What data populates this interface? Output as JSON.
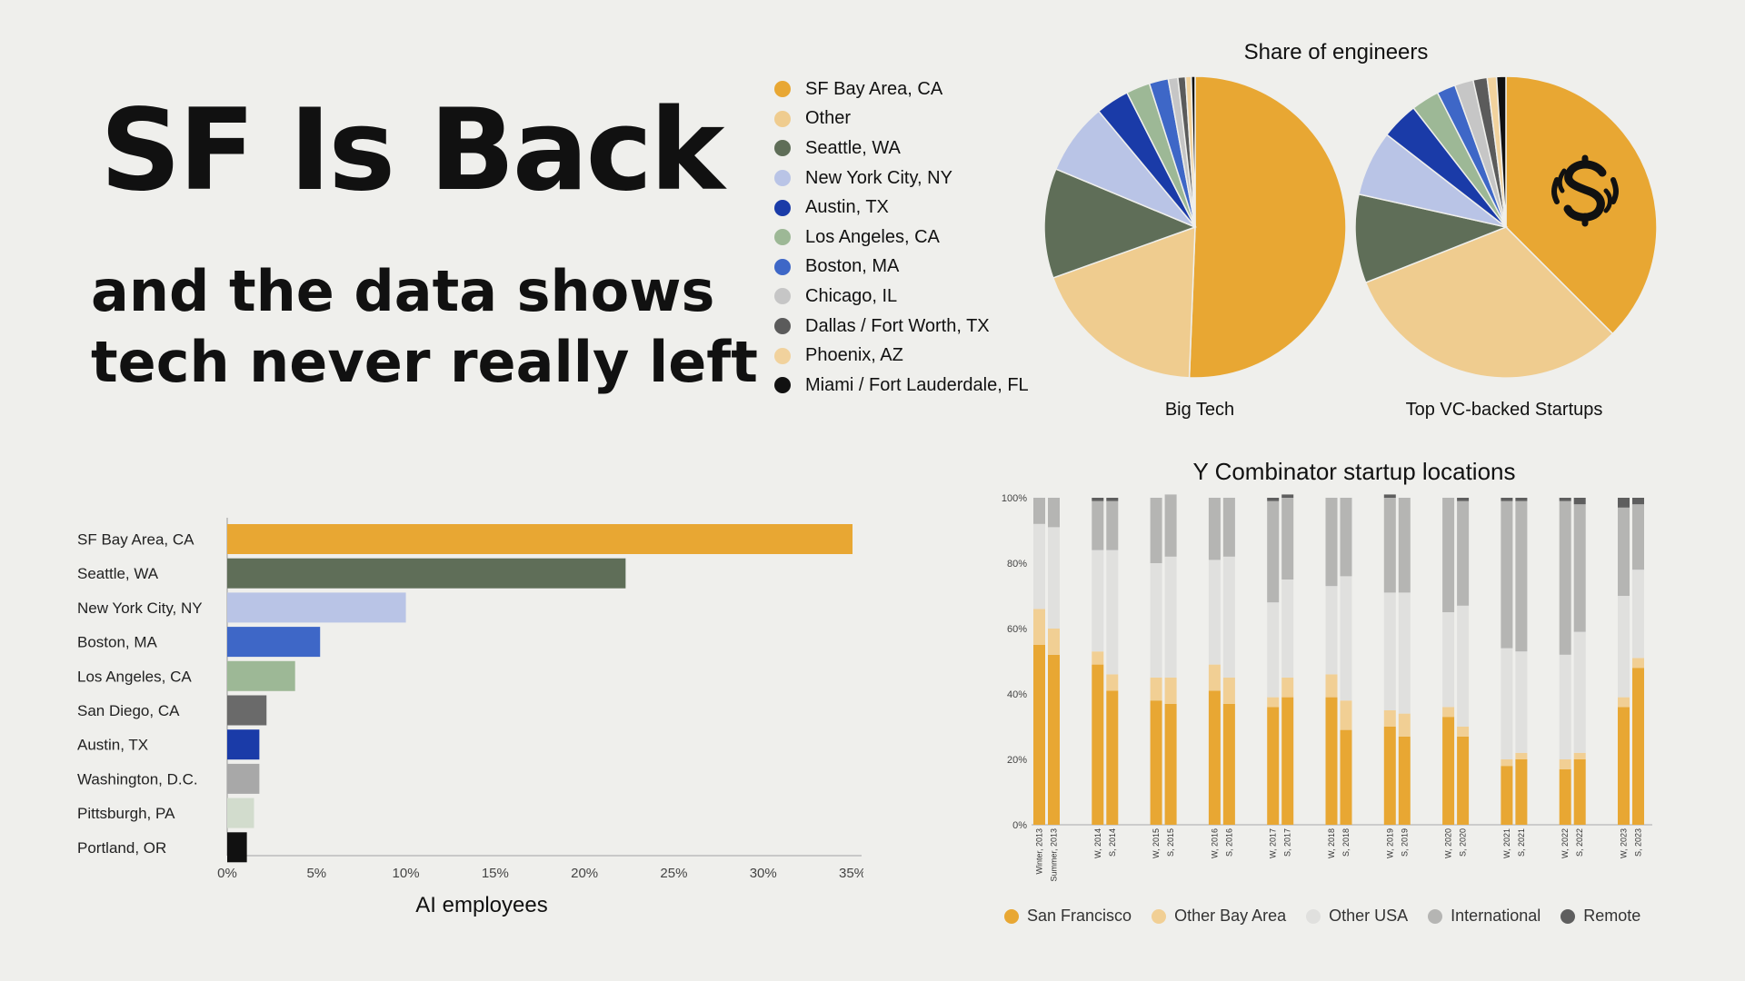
{
  "headline": "SF Is Back",
  "subline": [
    "and the data shows",
    "tech never really left"
  ],
  "colors": {
    "sf": "#e8a733",
    "other": "#efcc8f",
    "seattle": "#5f6e58",
    "nyc": "#b9c4e6",
    "austin": "#1a3ba8",
    "la": "#9db896",
    "boston": "#3e67c7",
    "chicago": "#c6c6c6",
    "dallas": "#5b5b5b",
    "phoenix": "#f1d29d",
    "miami": "#111111"
  },
  "pie_legend": [
    {
      "label": "SF Bay Area, CA",
      "color": "#e8a733"
    },
    {
      "label": "Other",
      "color": "#efcc8f"
    },
    {
      "label": "Seattle, WA",
      "color": "#5f6e58"
    },
    {
      "label": "New York City, NY",
      "color": "#b9c4e6"
    },
    {
      "label": "Austin, TX",
      "color": "#1a3ba8"
    },
    {
      "label": "Los Angeles, CA",
      "color": "#9db896"
    },
    {
      "label": "Boston, MA",
      "color": "#3e67c7"
    },
    {
      "label": "Chicago, IL",
      "color": "#c6c6c6"
    },
    {
      "label": "Dallas / Fort Worth, TX",
      "color": "#5b5b5b"
    },
    {
      "label": "Phoenix, AZ",
      "color": "#f1d29d"
    },
    {
      "label": "Miami / Fort Lauderdale, FL",
      "color": "#111111"
    }
  ],
  "logo_icon": "stylized-s-logo",
  "chart_data": [
    {
      "type": "pie",
      "title": "Share of engineers",
      "subtitle": "Big Tech",
      "categories": [
        "SF Bay Area, CA",
        "Other",
        "Seattle, WA",
        "New York City, NY",
        "Austin, TX",
        "Los Angeles, CA",
        "Boston, MA",
        "Chicago, IL",
        "Dallas / Fort Worth, TX",
        "Phoenix, AZ",
        "Miami / Fort Lauderdale, FL"
      ],
      "values": [
        49.5,
        18.5,
        11.5,
        7.5,
        3.5,
        2.5,
        2.0,
        1.0,
        0.8,
        0.6,
        0.4
      ]
    },
    {
      "type": "pie",
      "title": "Share of engineers",
      "subtitle": "Top VC-backed Startups",
      "categories": [
        "SF Bay Area, CA",
        "Other",
        "Seattle, WA",
        "New York City, NY",
        "Austin, TX",
        "Los Angeles, CA",
        "Boston, MA",
        "Chicago, IL",
        "Dallas / Fort Worth, TX",
        "Phoenix, AZ",
        "Miami / Fort Lauderdale, FL"
      ],
      "values": [
        37.5,
        31.5,
        9.5,
        7.0,
        4.0,
        3.0,
        2.0,
        2.0,
        1.5,
        1.0,
        1.0
      ]
    },
    {
      "type": "bar",
      "orientation": "horizontal",
      "xlabel": "AI employees",
      "categories": [
        "SF Bay Area, CA",
        "Seattle, WA",
        "New York City, NY",
        "Boston, MA",
        "Los Angeles, CA",
        "San Diego, CA",
        "Austin, TX",
        "Washington, D.C.",
        "Pittsburgh, PA",
        "Portland, OR"
      ],
      "values": [
        35,
        22.3,
        10,
        5.2,
        3.8,
        2.2,
        1.8,
        1.8,
        1.5,
        1.1
      ],
      "colors": [
        "#e8a733",
        "#5f6e58",
        "#b9c4e6",
        "#3e67c7",
        "#9db896",
        "#6a6a6a",
        "#1a3ba8",
        "#a8a8a8",
        "#d2dccd",
        "#111111"
      ],
      "xlim": [
        0,
        35
      ],
      "xticks": [
        "0%",
        "5%",
        "10%",
        "15%",
        "20%",
        "25%",
        "30%",
        "35%"
      ]
    },
    {
      "type": "bar",
      "stacked": true,
      "title": "Y Combinator startup locations",
      "ylim": [
        0,
        100
      ],
      "yticks": [
        "0%",
        "20%",
        "40%",
        "60%",
        "80%",
        "100%"
      ],
      "categories": [
        "Winter, 2013",
        "Summer, 2013",
        "W, 2014",
        "S, 2014",
        "W, 2015",
        "S, 2015",
        "W, 2016",
        "S, 2016",
        "W, 2017",
        "S, 2017",
        "W, 2018",
        "S, 2018",
        "W, 2019",
        "S, 2019",
        "W, 2020",
        "S, 2020",
        "W, 2021",
        "S, 2021",
        "W, 2022",
        "S, 2022",
        "W, 2023",
        "S, 2023"
      ],
      "series": [
        {
          "name": "San Francisco",
          "color": "#e8a733",
          "values": [
            55,
            52,
            49,
            41,
            38,
            37,
            41,
            37,
            36,
            39,
            39,
            29,
            30,
            27,
            33,
            27,
            18,
            20,
            17,
            20,
            36,
            48
          ]
        },
        {
          "name": "Other Bay Area",
          "color": "#f1cf94",
          "values": [
            11,
            8,
            4,
            5,
            7,
            8,
            8,
            8,
            3,
            6,
            7,
            9,
            5,
            7,
            3,
            3,
            2,
            2,
            3,
            2,
            3,
            3
          ]
        },
        {
          "name": "Other USA",
          "color": "#e0e0de",
          "values": [
            26,
            31,
            31,
            38,
            35,
            37,
            32,
            37,
            29,
            30,
            27,
            38,
            36,
            37,
            29,
            37,
            34,
            31,
            32,
            37,
            31,
            27
          ]
        },
        {
          "name": "International",
          "color": "#b5b5b3",
          "values": [
            8,
            9,
            15,
            15,
            20,
            19,
            19,
            18,
            31,
            25,
            27,
            24,
            29,
            29,
            35,
            32,
            45,
            46,
            47,
            39,
            27,
            20
          ]
        },
        {
          "name": "Remote",
          "color": "#5e5e5e",
          "values": [
            0,
            0,
            1,
            1,
            0,
            0,
            0,
            0,
            1,
            1,
            0,
            0,
            1,
            0,
            0,
            1,
            1,
            1,
            1,
            2,
            3,
            2
          ]
        }
      ]
    }
  ]
}
